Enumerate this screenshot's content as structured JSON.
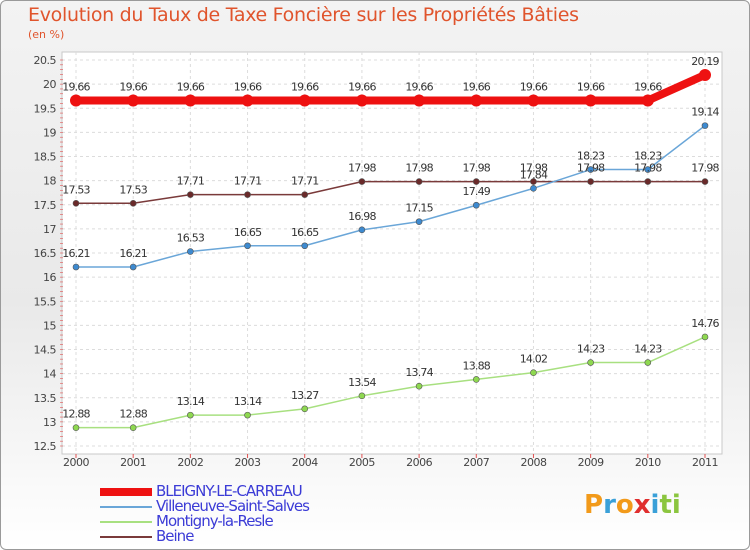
{
  "title": "Evolution du Taux de Taxe Foncière sur les Propriétés Bâties",
  "unit_label": "(en %)",
  "logo_text": "Proxiti",
  "chart_data": {
    "type": "line",
    "title": "Evolution du Taux de Taxe Foncière sur les Propriétés Bâties",
    "ylabel": "(en %)",
    "xlabel": "",
    "x": [
      "2000",
      "2001",
      "2002",
      "2003",
      "2004",
      "2005",
      "2006",
      "2007",
      "2008",
      "2009",
      "2010",
      "2011"
    ],
    "ylim": [
      12.5,
      20.5
    ],
    "yticks": [
      "12.5",
      "13",
      "13.5",
      "14",
      "14.5",
      "15",
      "15.5",
      "16",
      "16.5",
      "17",
      "17.5",
      "18",
      "18.5",
      "19",
      "19.5",
      "20",
      "20.5"
    ],
    "grid": true,
    "legend_position": "bottom-left",
    "series": [
      {
        "name": "BLEIGNY-LE-CARREAU",
        "color": "#ee1111",
        "values": [
          19.66,
          19.66,
          19.66,
          19.66,
          19.66,
          19.66,
          19.66,
          19.66,
          19.66,
          19.66,
          19.66,
          20.19
        ],
        "labels": [
          "19.66",
          "19.66",
          "19.66",
          "19.66",
          "19.66",
          "19.66",
          "19.66",
          "19.66",
          "19.66",
          "19.66",
          "19.66",
          "20.19"
        ]
      },
      {
        "name": "Villeneuve-Saint-Salves",
        "color": "#6aa6d8",
        "values": [
          16.21,
          16.21,
          16.53,
          16.65,
          16.65,
          16.98,
          17.15,
          17.49,
          17.84,
          18.23,
          18.23,
          19.14
        ],
        "labels": [
          "16.21",
          "16.21",
          "16.53",
          "16.65",
          "16.65",
          "16.98",
          "17.15",
          "17.49",
          "17.84",
          "18.23",
          "18.23",
          "19.14"
        ]
      },
      {
        "name": "Montigny-la-Resle",
        "color": "#a8e080",
        "values": [
          12.88,
          12.88,
          13.14,
          13.14,
          13.27,
          13.54,
          13.74,
          13.88,
          14.02,
          14.23,
          14.23,
          14.76
        ],
        "labels": [
          "12.88",
          "12.88",
          "13.14",
          "13.14",
          "13.27",
          "13.54",
          "13.74",
          "13.88",
          "14.02",
          "14.23",
          "14.23",
          "14.76"
        ]
      },
      {
        "name": "Beine",
        "color": "#7a3a3a",
        "values": [
          17.53,
          17.53,
          17.71,
          17.71,
          17.71,
          17.98,
          17.98,
          17.98,
          17.98,
          17.98,
          17.98,
          17.98
        ],
        "labels": [
          "17.53",
          "17.53",
          "17.71",
          "17.71",
          "17.71",
          "17.98",
          "17.98",
          "17.98",
          "17.98",
          "17.98",
          "17.98",
          "17.98"
        ]
      }
    ]
  }
}
